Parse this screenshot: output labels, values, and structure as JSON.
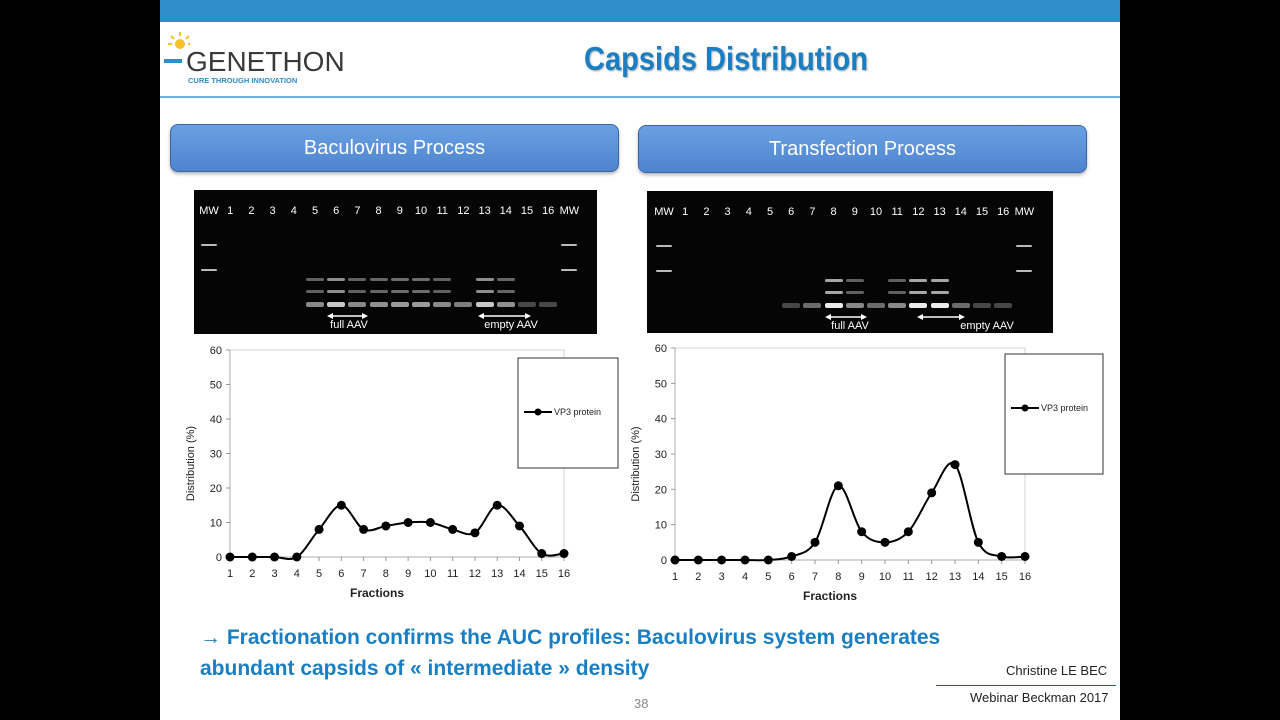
{
  "slide": {
    "title": "Capsids Distribution",
    "logo": {
      "name": "GENETHON",
      "tagline": "CURE THROUGH INNOVATION"
    },
    "page_number": "38",
    "author": "Christine LE BEC",
    "event": "Webinar Beckman 2017",
    "conclusion_line1": "→ Fractionation  confirms the AUC profiles: Baculovirus system generates",
    "conclusion_line2": "abundant capsids of « intermediate » density"
  },
  "panels": {
    "left": {
      "button_label": "Baculovirus Process",
      "gel_lanes": [
        "MW",
        "1",
        "2",
        "3",
        "4",
        "5",
        "6",
        "7",
        "8",
        "9",
        "10",
        "11",
        "12",
        "13",
        "14",
        "15",
        "16",
        "MW"
      ],
      "full_label": "full AAV",
      "empty_label": "empty AAV"
    },
    "right": {
      "button_label": "Transfection Process",
      "gel_lanes": [
        "MW",
        "1",
        "2",
        "3",
        "4",
        "5",
        "6",
        "7",
        "8",
        "9",
        "10",
        "11",
        "12",
        "13",
        "14",
        "15",
        "16",
        "MW"
      ],
      "full_label": "full AAV",
      "empty_label": "empty AAV"
    }
  },
  "chart_data": [
    {
      "type": "line",
      "x": [
        1,
        2,
        3,
        4,
        5,
        6,
        7,
        8,
        9,
        10,
        11,
        12,
        13,
        14,
        15,
        16
      ],
      "series": [
        {
          "name": "VP3 protein",
          "values": [
            0,
            0,
            0,
            0,
            8,
            15,
            8,
            9,
            10,
            10,
            8,
            7,
            15,
            9,
            1,
            1
          ]
        }
      ],
      "xlabel": "Fractions",
      "ylabel": "Distribution  (%)",
      "ylim": [
        0,
        60
      ],
      "yticks": [
        0,
        10,
        20,
        30,
        40,
        50,
        60
      ],
      "legend_position": "top-right",
      "grid": false,
      "line_color": "#000000"
    },
    {
      "type": "line",
      "x": [
        1,
        2,
        3,
        4,
        5,
        6,
        7,
        8,
        9,
        10,
        11,
        12,
        13,
        14,
        15,
        16
      ],
      "series": [
        {
          "name": "VP3 protein",
          "values": [
            0,
            0,
            0,
            0,
            0,
            1,
            5,
            21,
            8,
            5,
            8,
            19,
            27,
            5,
            1,
            1
          ]
        }
      ],
      "xlabel": "Fractions",
      "ylabel": "Distribution  (%)",
      "ylim": [
        0,
        60
      ],
      "yticks": [
        0,
        10,
        20,
        30,
        40,
        50,
        60
      ],
      "legend_position": "top-right",
      "grid": false,
      "line_color": "#000000"
    }
  ],
  "colors": {
    "accent": "#1a7fc2",
    "button": "#5a8fd8",
    "top_bar": "#2f8dc8"
  }
}
